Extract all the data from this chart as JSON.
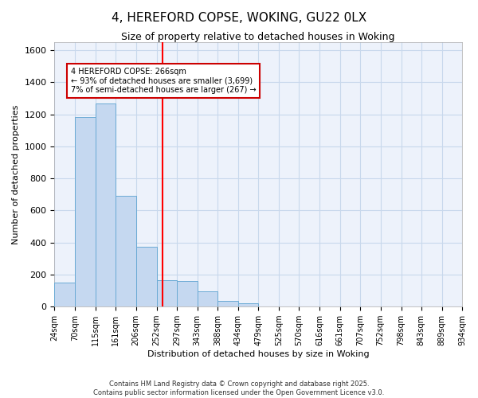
{
  "title_line1": "4, HEREFORD COPSE, WOKING, GU22 0LX",
  "title_line2": "Size of property relative to detached houses in Woking",
  "xlabel": "Distribution of detached houses by size in Woking",
  "ylabel": "Number of detached properties",
  "bin_edges": [
    24,
    70,
    115,
    161,
    206,
    252,
    297,
    343,
    388,
    434,
    479,
    525,
    570,
    616,
    661,
    707,
    752,
    798,
    843,
    889,
    934
  ],
  "bar_heights": [
    150,
    1185,
    1270,
    690,
    375,
    165,
    160,
    95,
    35,
    20,
    0,
    0,
    0,
    0,
    0,
    0,
    0,
    0,
    0,
    0
  ],
  "bar_color": "#c5d8f0",
  "bar_edge_color": "#6aaad4",
  "grid_color": "#c8d8ec",
  "bg_color": "#ffffff",
  "plot_bg_color": "#edf2fb",
  "red_line_x": 266,
  "annotation_text": "4 HEREFORD COPSE: 266sqm\n← 93% of detached houses are smaller (3,699)\n7% of semi-detached houses are larger (267) →",
  "annotation_box_color": "#ffffff",
  "annotation_box_edge": "#cc0000",
  "ylim": [
    0,
    1650
  ],
  "yticks": [
    0,
    200,
    400,
    600,
    800,
    1000,
    1200,
    1400,
    1600
  ],
  "footer_line1": "Contains HM Land Registry data © Crown copyright and database right 2025.",
  "footer_line2": "Contains public sector information licensed under the Open Government Licence v3.0.",
  "tick_labels": [
    "24sqm",
    "70sqm",
    "115sqm",
    "161sqm",
    "206sqm",
    "252sqm",
    "297sqm",
    "343sqm",
    "388sqm",
    "434sqm",
    "479sqm",
    "525sqm",
    "570sqm",
    "616sqm",
    "661sqm",
    "707sqm",
    "752sqm",
    "798sqm",
    "843sqm",
    "889sqm",
    "934sqm"
  ]
}
